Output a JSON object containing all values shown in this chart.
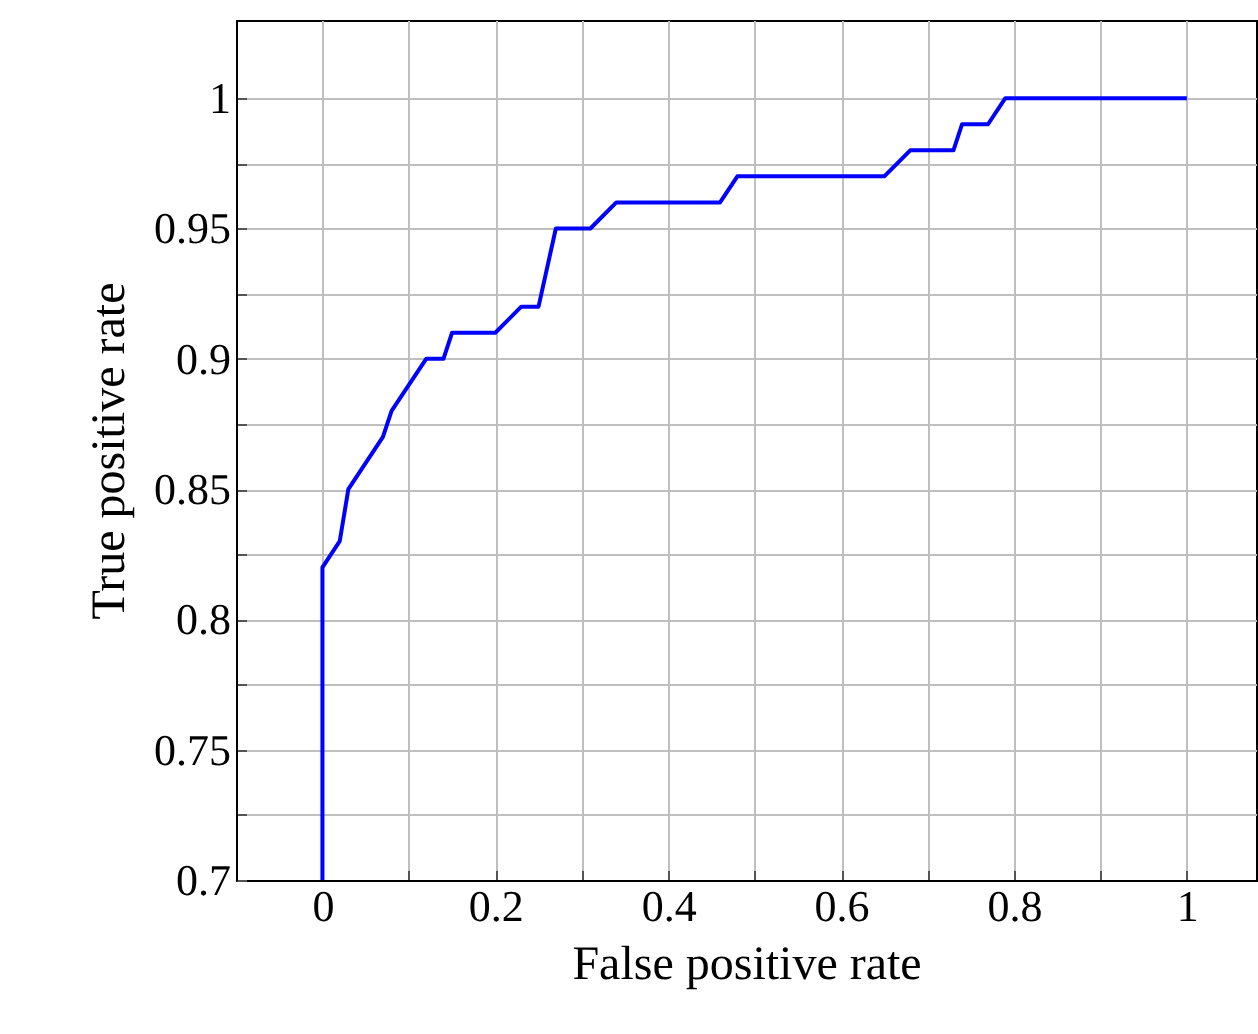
{
  "chart_data": {
    "type": "line",
    "xlabel": "False positive rate",
    "ylabel": "True positive rate",
    "x": [
      0,
      0,
      0.02,
      0.03,
      0.07,
      0.08,
      0.12,
      0.14,
      0.15,
      0.2,
      0.23,
      0.25,
      0.27,
      0.31,
      0.34,
      0.46,
      0.48,
      0.65,
      0.68,
      0.73,
      0.74,
      0.77,
      0.79,
      1
    ],
    "series": [
      {
        "color": "#0000ff",
        "values": [
          0.7,
          0.82,
          0.83,
          0.85,
          0.87,
          0.88,
          0.9,
          0.9,
          0.91,
          0.91,
          0.92,
          0.92,
          0.95,
          0.95,
          0.96,
          0.96,
          0.97,
          0.97,
          0.98,
          0.98,
          0.99,
          0.99,
          1,
          1
        ]
      }
    ],
    "xlim": [
      -0.1,
      1.08
    ],
    "ylim": [
      0.7,
      1.03
    ],
    "xticks": [
      {
        "value": -0.1,
        "label": null
      },
      0,
      {
        "value": 0.1,
        "label": null
      },
      0.2,
      {
        "value": 0.3,
        "label": null
      },
      0.4,
      {
        "value": 0.5,
        "label": null
      },
      0.6,
      {
        "value": 0.7,
        "label": null
      },
      0.8,
      {
        "value": 0.9,
        "label": null
      },
      1
    ],
    "yticks": [
      0.7,
      {
        "value": 0.725,
        "label": null
      },
      0.75,
      {
        "value": 0.775,
        "label": null
      },
      0.8,
      {
        "value": 0.825,
        "label": null
      },
      0.85,
      {
        "value": 0.875,
        "label": null
      },
      0.9,
      {
        "value": 0.925,
        "label": null
      },
      0.95,
      {
        "value": 0.975,
        "label": null
      },
      1
    ],
    "grid": true,
    "marker": "none",
    "line_style": "solid"
  }
}
